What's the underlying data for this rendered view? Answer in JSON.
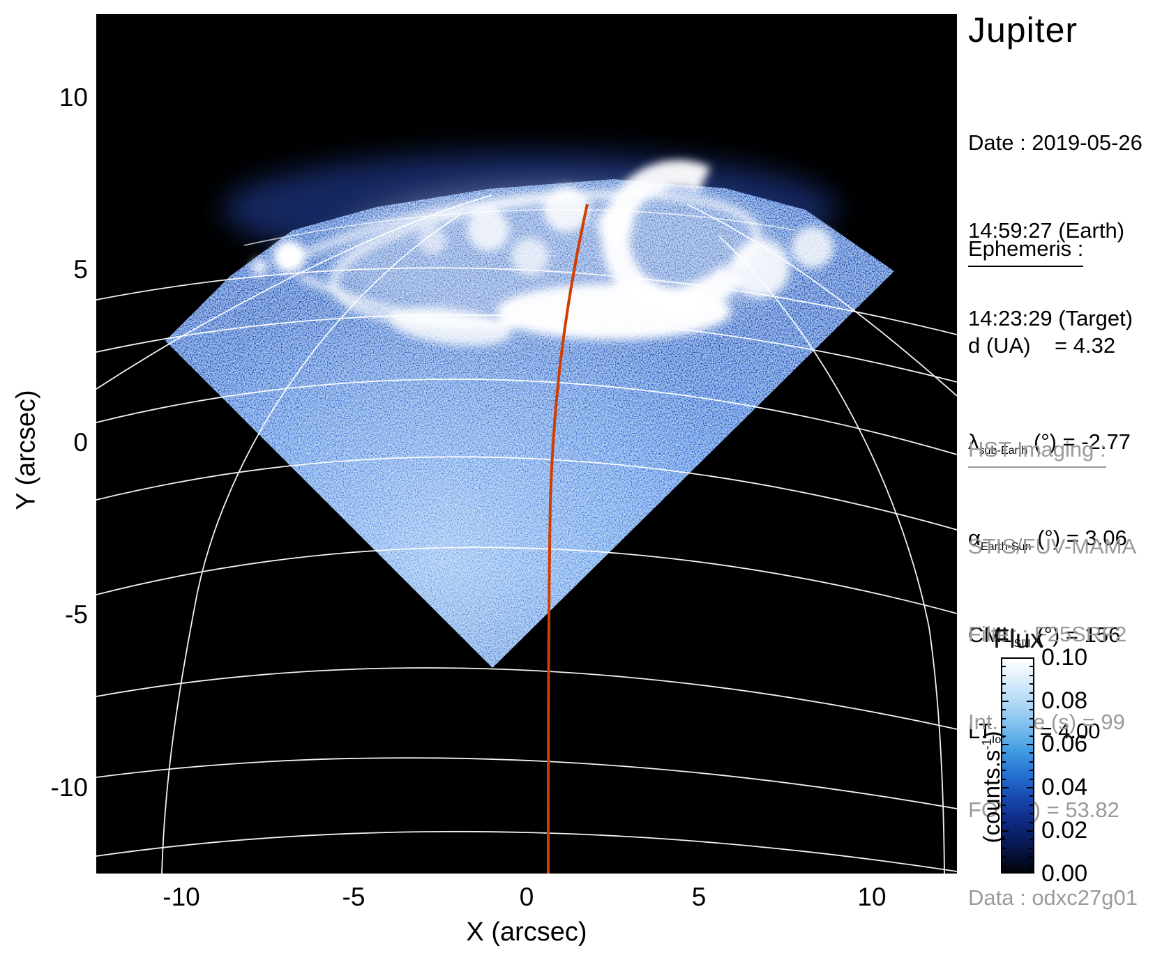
{
  "title": "Jupiter",
  "datetime": {
    "date_line": "Date : 2019-05-26",
    "earth_line": "14:59:27 (Earth)",
    "target_line": "14:23:29 (Target)"
  },
  "ephemeris": {
    "heading": "Ephemeris :",
    "rows": [
      {
        "pre": "d (UA)",
        "sub": "",
        "post": "    = 4.32"
      },
      {
        "pre": "λ",
        "sub": "sub-Earth",
        "post": " (°) = -2.77"
      },
      {
        "pre": "α",
        "sub": "Earth-Sun",
        "post": " (°) = 3.06"
      },
      {
        "pre": "CML",
        "sub": "SIII",
        "post": " (°) = 156"
      },
      {
        "pre": "LT",
        "sub": "Io",
        "post": " (h) = 4.00"
      }
    ]
  },
  "hst": {
    "heading": "HST Imaging :",
    "rows": [
      "STIS/FUV-MAMA",
      "Filter : F25SRF2",
      "Int. time (s) = 99",
      "FOV (\") = 53.82",
      "Data : odxc27g01"
    ]
  },
  "colorbar": {
    "title": "Flux",
    "unit_pre": "(counts.s",
    "unit_sup": "-1",
    "unit_post": ")",
    "ticks": [
      "0.10",
      "0.08",
      "0.06",
      "0.04",
      "0.02",
      "0.00"
    ]
  },
  "axes": {
    "x": {
      "label": "X (arcsec)",
      "ticks": [
        "-10",
        "-5",
        "0",
        "5",
        "10"
      ]
    },
    "y": {
      "label": "Y (arcsec)",
      "ticks": [
        "10",
        "5",
        "0",
        "-5",
        "-10"
      ]
    }
  },
  "colors": {
    "cml_line": "#d13d00",
    "graticule": "#ffffff",
    "background": "#000000",
    "annotation_gray": "#9a9a9a"
  },
  "chart_data": {
    "type": "heatmap",
    "title": "Jupiter",
    "xlabel": "X (arcsec)",
    "ylabel": "Y (arcsec)",
    "xlim": [
      -12.5,
      12.5
    ],
    "ylim": [
      -12.5,
      12.5
    ],
    "x_ticks": [
      -10,
      -5,
      0,
      5,
      10
    ],
    "y_ticks": [
      10,
      5,
      0,
      -5,
      -10
    ],
    "grid": "planetary lat-lon graticule in white; red line marks the central meridian (CML)",
    "colorbar": {
      "label": "Flux (counts.s-1)",
      "min": 0.0,
      "max": 0.1,
      "ticks": [
        0.1,
        0.08,
        0.06,
        0.04,
        0.02,
        0.0
      ],
      "colormap": "black -> navy -> blue -> white"
    },
    "content": "Diamond-shaped (rotated-square) detector field of view filled with blue photon noise, bottom vertex near (0,-5) arcsec; bright white auroral oval emission across the top of the disk near y = +5 to +7 arcsec including an isolated footprint spot on the left; black sky elsewhere",
    "annotations": {
      "date": "2019-05-26",
      "time_earth": "14:59:27",
      "time_target": "14:23:29",
      "d_UA": 4.32,
      "lambda_sub_earth_deg": -2.77,
      "alpha_earth_sun_deg": 3.06,
      "CML_SIII_deg": 156,
      "LT_Io_h": 4.0,
      "instrument": "STIS/FUV-MAMA",
      "filter": "F25SRF2",
      "int_time_s": 99,
      "fov_arcsec": 53.82,
      "data_id": "odxc27g01"
    }
  }
}
